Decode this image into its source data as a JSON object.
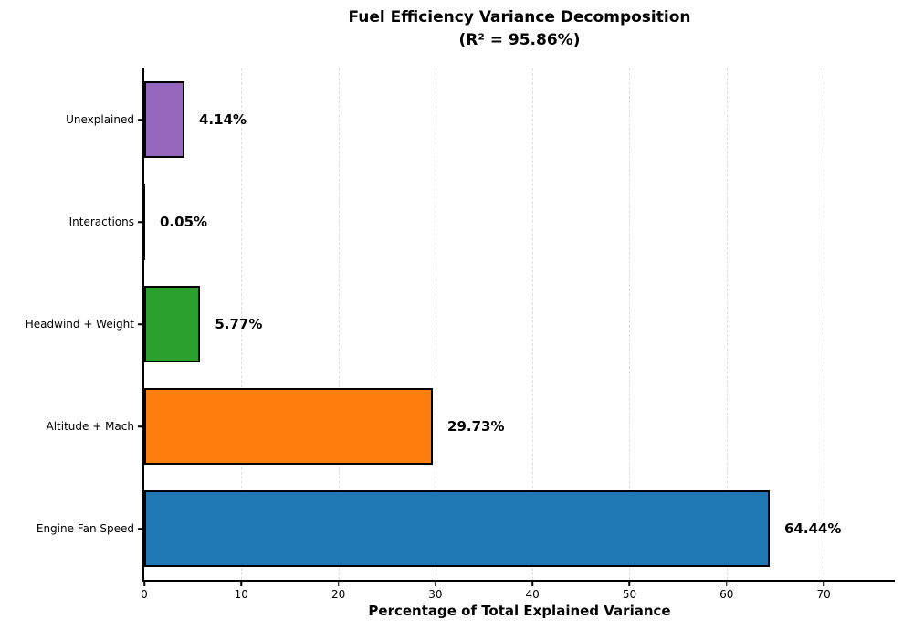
{
  "chart_data": {
    "type": "bar",
    "orientation": "horizontal",
    "title": "Fuel Efficiency Variance Decomposition",
    "subtitle": "(R² = 95.86%)",
    "xlabel": "Percentage of Total Explained Variance",
    "categories": [
      "Unexplained",
      "Interactions",
      "Headwind + Weight",
      "Altitude + Mach",
      "Engine Fan Speed"
    ],
    "values": [
      4.14,
      0.05,
      5.77,
      29.73,
      64.44
    ],
    "value_labels": [
      "4.14%",
      "0.05%",
      "5.77%",
      "29.73%",
      "64.44%"
    ],
    "bar_colors": [
      "#9467bd",
      "#d62728",
      "#2ca02c",
      "#ff7f0e",
      "#1f77b4"
    ],
    "bar_edge_color": "#000000",
    "xticks": [
      0,
      10,
      20,
      30,
      40,
      50,
      60,
      70
    ],
    "xlim": [
      0,
      77.33
    ],
    "grid": "vertical-dashed",
    "gridline_color": "#dedede",
    "legend_position": "none"
  }
}
